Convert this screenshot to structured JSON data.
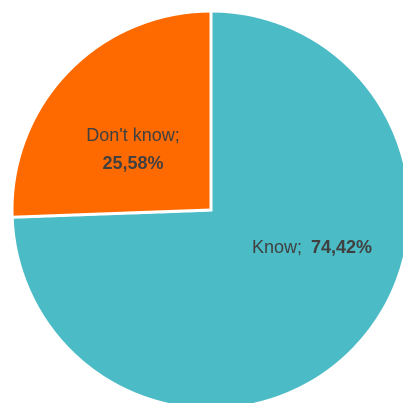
{
  "chart_data": {
    "type": "pie",
    "start_angle": "12 o'clock",
    "direction": "clockwise",
    "slices": [
      {
        "label": "Know",
        "value": 74.42,
        "value_text": "74,42%",
        "color": "#4BBBC6"
      },
      {
        "label": "Don't know",
        "value": 25.58,
        "value_text": "25,58%",
        "color": "#FF6A00"
      }
    ],
    "labels": {
      "know": {
        "name": "Know;",
        "value": "74,42%"
      },
      "dont_know": {
        "name": "Don't know;",
        "value": "25,58%"
      }
    }
  }
}
